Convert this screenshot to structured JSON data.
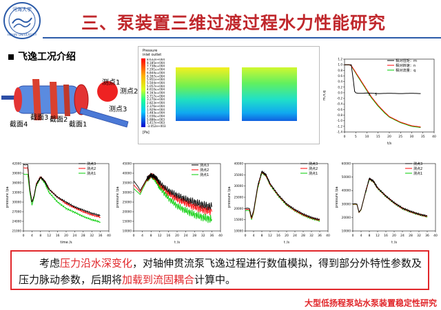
{
  "header": {
    "title": "三、泵装置三维过渡过程水力性能研究",
    "logo_text": "河海大学 HOHAI UNIVERSITY"
  },
  "section": {
    "subtitle": "飞逸工况介绍"
  },
  "model": {
    "labels": [
      "测点1",
      "测点2",
      "测点3",
      "截面1",
      "截面2",
      "截面3",
      "截面4"
    ]
  },
  "contours": {
    "legend_title": "Pressure",
    "legend_sub": "inlet outlet",
    "legend_values": [
      "8.632e+004",
      "8.185e+004",
      "7.738e+004",
      "7.291e+004",
      "6.844e+004",
      "6.397e+004",
      "5.951e+004",
      "5.504e+004",
      "5.057e+004",
      "4.610e+004",
      "4.163e+004",
      "3.717e+004",
      "3.270e+004",
      "2.823e+004",
      "2.376e+004",
      "1.929e+004",
      "1.483e+004",
      "1.036e+004",
      "5.886e+003",
      "1.417e+003",
      "-3.052e+003"
    ],
    "legend_unit": "[Pa]"
  },
  "colors": {
    "title_red": "#c0282d",
    "accent_blue": "#2a5aa8",
    "highlight_red": "#e1262a",
    "series_black": "#000000",
    "series_red": "#ff0000",
    "series_green": "#00cc00"
  },
  "chart_data": [
    {
      "type": "line",
      "title": "",
      "xlabel": "t/s",
      "ylabel": "m,n,q",
      "xlim": [
        0,
        40
      ],
      "ylim": [
        -1.4,
        1.2
      ],
      "xticks": [
        "0",
        "5",
        "10",
        "15",
        "20",
        "25",
        "30",
        "35",
        "40"
      ],
      "yticks": [
        "1.2",
        "1.0",
        "0.8",
        "0.6",
        "0.4",
        "0.2",
        "0.0",
        "-0.2",
        "-0.4",
        "-0.6",
        "-0.8",
        "-1.0",
        "-1.2",
        "-1.4"
      ],
      "annotations": [
        "S",
        "S"
      ],
      "series": [
        {
          "name": "相对扭矩：m",
          "color": "#000000",
          "x": [
            0,
            3,
            4,
            4.5,
            5,
            6,
            8,
            10,
            15,
            20,
            25,
            30,
            34
          ],
          "y": [
            1.0,
            1.0,
            0.4,
            0.05,
            0.0,
            -0.02,
            -0.02,
            -0.01,
            -0.03,
            -0.02,
            -0.03,
            -0.02,
            -0.03
          ]
        },
        {
          "name": "相对转速：n",
          "color": "#ff0000",
          "x": [
            0,
            2,
            3,
            4,
            6,
            8,
            10,
            12,
            15,
            18,
            20,
            25,
            30,
            34
          ],
          "y": [
            1.0,
            1.0,
            0.97,
            0.85,
            0.6,
            0.35,
            0.1,
            -0.15,
            -0.45,
            -0.7,
            -0.85,
            -1.05,
            -1.18,
            -1.22
          ]
        },
        {
          "name": "相对流量：q",
          "color": "#00cc00",
          "x": [
            0,
            2,
            3,
            4,
            6,
            8,
            10,
            12,
            15,
            18,
            20,
            25,
            30,
            34
          ],
          "y": [
            1.0,
            1.0,
            0.96,
            0.83,
            0.57,
            0.32,
            0.07,
            -0.18,
            -0.48,
            -0.73,
            -0.87,
            -1.07,
            -1.2,
            -1.24
          ]
        }
      ]
    },
    {
      "type": "line",
      "title": "",
      "xlabel": "time /s",
      "ylabel": "pressure /pa",
      "xlim": [
        0,
        40
      ],
      "ylim": [
        21000,
        42000
      ],
      "xticks": [
        "0",
        "4",
        "8",
        "12",
        "16",
        "20",
        "24",
        "28",
        "32",
        "36",
        "40"
      ],
      "yticks": [
        "42000",
        "39000",
        "36000",
        "33000",
        "30000",
        "27000",
        "24000",
        "21000"
      ],
      "series": [
        {
          "name": "测点3",
          "color": "#000000",
          "x": [
            0,
            1,
            2,
            3,
            4,
            5,
            6,
            8,
            10,
            12,
            16,
            20,
            24,
            28,
            32,
            36
          ],
          "y": [
            41700,
            41600,
            41700,
            34000,
            30000,
            32000,
            35500,
            37800,
            36500,
            34000,
            31500,
            30000,
            28500,
            27500,
            26500,
            25800
          ]
        },
        {
          "name": "测点2",
          "color": "#ff0000",
          "x": [
            0,
            1,
            2,
            3,
            4,
            5,
            6,
            8,
            10,
            12,
            16,
            20,
            24,
            28,
            32,
            36
          ],
          "y": [
            40700,
            40600,
            40700,
            34000,
            30000,
            32000,
            35500,
            37800,
            36500,
            34000,
            31500,
            29500,
            28200,
            27000,
            26000,
            25300
          ]
        },
        {
          "name": "测点1",
          "color": "#00cc00",
          "x": [
            0,
            1,
            2,
            3,
            4,
            5,
            6,
            8,
            10,
            12,
            16,
            20,
            24,
            28,
            32,
            36
          ],
          "y": [
            38700,
            38600,
            38700,
            33000,
            29000,
            31500,
            35000,
            37700,
            36000,
            33000,
            30000,
            28000,
            26800,
            25500,
            24500,
            23800
          ]
        }
      ]
    },
    {
      "type": "line",
      "title": "",
      "xlabel": "t /s",
      "ylabel": "pressure /pa",
      "xlim": [
        0,
        40
      ],
      "ylim": [
        10000,
        45000
      ],
      "xticks": [
        "0",
        "4",
        "8",
        "12",
        "16",
        "20",
        "24",
        "28",
        "32",
        "36",
        "40"
      ],
      "yticks": [
        "45000",
        "40000",
        "35000",
        "30000",
        "25000",
        "20000",
        "15000",
        "10000"
      ],
      "series": [
        {
          "name": "测点3",
          "color": "#000000",
          "x": [
            0,
            2,
            3,
            4,
            6,
            8,
            10,
            12,
            16,
            20,
            24,
            28,
            32,
            36
          ],
          "y": [
            36000,
            33000,
            31000,
            33000,
            37000,
            39000,
            38000,
            35000,
            31000,
            28500,
            26500,
            25000,
            23500,
            22500
          ]
        },
        {
          "name": "测点2",
          "color": "#ff0000",
          "x": [
            0,
            2,
            3,
            4,
            6,
            8,
            10,
            12,
            16,
            20,
            24,
            28,
            32,
            36
          ],
          "y": [
            34000,
            31500,
            30000,
            32500,
            36500,
            39000,
            37500,
            34000,
            29500,
            26500,
            24500,
            22500,
            21000,
            20000
          ]
        },
        {
          "name": "测点1",
          "color": "#00cc00",
          "x": [
            0,
            2,
            3,
            4,
            6,
            8,
            10,
            12,
            16,
            20,
            24,
            28,
            32,
            36
          ],
          "y": [
            32000,
            30000,
            29000,
            31500,
            36000,
            38800,
            36500,
            32500,
            27000,
            23000,
            20500,
            18500,
            17000,
            16000
          ]
        }
      ]
    },
    {
      "type": "line",
      "title": "",
      "xlabel": "t /s",
      "ylabel": "pressure /pa",
      "xlim": [
        0,
        40
      ],
      "ylim": [
        10000,
        40000
      ],
      "xticks": [
        "0",
        "4",
        "8",
        "12",
        "16",
        "20",
        "24",
        "28",
        "32",
        "36",
        "40"
      ],
      "yticks": [
        "40000",
        "35000",
        "30000",
        "25000",
        "20000",
        "15000",
        "10000"
      ],
      "series": [
        {
          "name": "测点3",
          "color": "#000000",
          "x": [
            0,
            1,
            2,
            3,
            4,
            6,
            8,
            10,
            12,
            16,
            20,
            24,
            28,
            32,
            36
          ],
          "y": [
            20000,
            20200,
            20000,
            16000,
            19000,
            30000,
            36500,
            35000,
            31000,
            26000,
            22000,
            19500,
            17500,
            16000,
            15000
          ]
        },
        {
          "name": "测点2",
          "color": "#ff0000",
          "x": [
            0,
            1,
            2,
            3,
            4,
            6,
            8,
            10,
            12,
            16,
            20,
            24,
            28,
            32,
            36
          ],
          "y": [
            19500,
            19700,
            19500,
            15500,
            18500,
            29500,
            36300,
            34800,
            30800,
            25800,
            21800,
            19200,
            17200,
            15800,
            14800
          ]
        },
        {
          "name": "测点1",
          "color": "#00cc00",
          "x": [
            0,
            1,
            2,
            3,
            4,
            6,
            8,
            10,
            12,
            16,
            20,
            24,
            28,
            32,
            36
          ],
          "y": [
            19000,
            19200,
            19000,
            15000,
            18000,
            29000,
            36000,
            34500,
            30500,
            25500,
            21500,
            19000,
            17000,
            15500,
            14500
          ]
        }
      ]
    },
    {
      "type": "line",
      "title": "",
      "xlabel": "t /s",
      "ylabel": "pressure /pa",
      "xlim": [
        0,
        40
      ],
      "ylim": [
        10000,
        60000
      ],
      "xticks": [
        "0",
        "4",
        "8",
        "12",
        "16",
        "20",
        "24",
        "28",
        "32",
        "36",
        "40"
      ],
      "yticks": [
        "60000",
        "50000",
        "40000",
        "30000",
        "20000",
        "10000"
      ],
      "series": [
        {
          "name": "测点3",
          "color": "#000000",
          "x": [
            0,
            1,
            2,
            3,
            4,
            6,
            8,
            10,
            12,
            16,
            20,
            24,
            28,
            32,
            36
          ],
          "y": [
            30000,
            30200,
            30000,
            24000,
            26000,
            38000,
            49000,
            47000,
            42000,
            36000,
            31000,
            27000,
            24500,
            22500,
            21000
          ]
        },
        {
          "name": "测点2",
          "color": "#ff0000",
          "x": [
            0,
            1,
            2,
            3,
            4,
            6,
            8,
            10,
            12,
            16,
            20,
            24,
            28,
            32,
            36
          ],
          "y": [
            29800,
            30000,
            29800,
            23800,
            25800,
            37800,
            48800,
            46800,
            41800,
            35800,
            30800,
            26800,
            24300,
            22300,
            20800
          ]
        },
        {
          "name": "测点1",
          "color": "#00cc00",
          "x": [
            0,
            1,
            2,
            3,
            4,
            6,
            8,
            10,
            12,
            16,
            20,
            24,
            28,
            32,
            36
          ],
          "y": [
            29600,
            29800,
            29600,
            23600,
            25600,
            37600,
            48600,
            46600,
            41600,
            35600,
            30600,
            26600,
            24100,
            22100,
            20600
          ]
        }
      ]
    }
  ],
  "note": {
    "part1": "考虑",
    "hl1": "压力沿水深变化",
    "part2": "，对轴伸贯流泵飞逸过程进行数值模拟，得到部分外特性参数及压力脉动参数，后期将",
    "hl2": "加载到流固耦合",
    "part3": "计算中。"
  },
  "footer": {
    "text": "大型低扬程泵站水泵装置稳定性研究"
  }
}
